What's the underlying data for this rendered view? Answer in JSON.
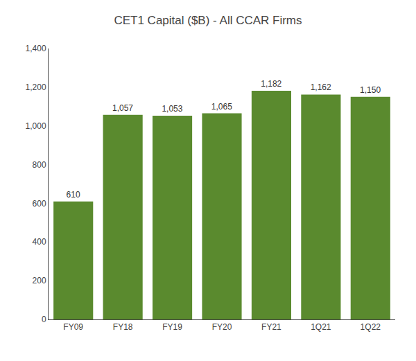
{
  "chart_data": {
    "type": "bar",
    "title": "CET1 Capital ($B) - All CCAR Firms",
    "categories": [
      "FY09",
      "FY18",
      "FY19",
      "FY20",
      "FY21",
      "1Q21",
      "1Q22"
    ],
    "values": [
      610,
      1057,
      1053,
      1065,
      1182,
      1162,
      1150
    ],
    "value_labels": [
      "610",
      "1,057",
      "1,053",
      "1,065",
      "1,182",
      "1,162",
      "1,150"
    ],
    "data_labels": true,
    "color": "#5a8a2e",
    "ylim": [
      0,
      1400
    ],
    "yticks": [
      0,
      200,
      400,
      600,
      800,
      {
        "value": 1000,
        "label": "1,000"
      },
      {
        "value": 1200,
        "label": "1,200"
      },
      {
        "value": 1400,
        "label": "1,400"
      }
    ],
    "grid": false
  }
}
